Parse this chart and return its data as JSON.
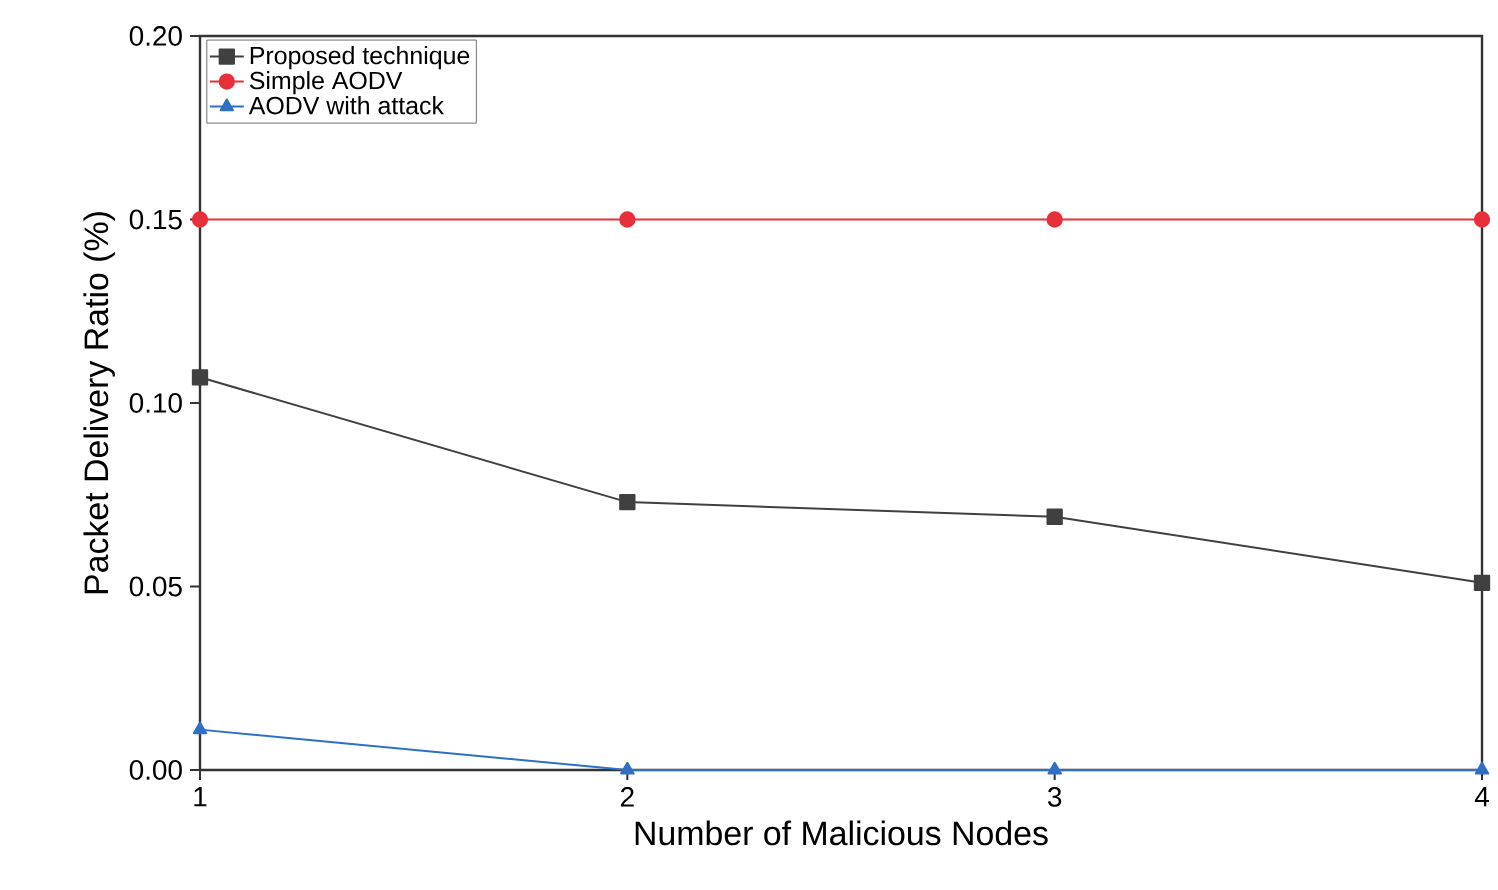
{
  "chart_data": {
    "type": "line",
    "xlabel": "Number of Malicious Nodes",
    "ylabel": "Packet Delivery Ratio (%)",
    "x": [
      1,
      2,
      3,
      4
    ],
    "xlim": [
      1,
      4
    ],
    "xticks": [
      1,
      2,
      3,
      4
    ],
    "ylim": [
      0,
      0.2
    ],
    "yticks": [
      {
        "value": 0,
        "label": "0.00"
      },
      {
        "value": 0.05,
        "label": "0.05"
      },
      {
        "value": 0.1,
        "label": "0.10"
      },
      {
        "value": 0.15,
        "label": "0.15"
      },
      {
        "value": 0.2,
        "label": "0.20"
      }
    ],
    "legend": "top left",
    "grid": false,
    "line_style": "solid",
    "series": [
      {
        "name": "Proposed technique",
        "color": "#404040",
        "marker": "square",
        "values": [
          0.107,
          0.073,
          0.069,
          0.051
        ]
      },
      {
        "name": "Simple AODV",
        "color": "#e8303a",
        "marker": "circle",
        "values": [
          0.15,
          0.15,
          0.15,
          0.15
        ]
      },
      {
        "name": "AODV with attack",
        "color": "#2f6fc4",
        "marker": "triangle",
        "values": [
          0.011,
          0,
          0,
          0
        ]
      }
    ]
  }
}
